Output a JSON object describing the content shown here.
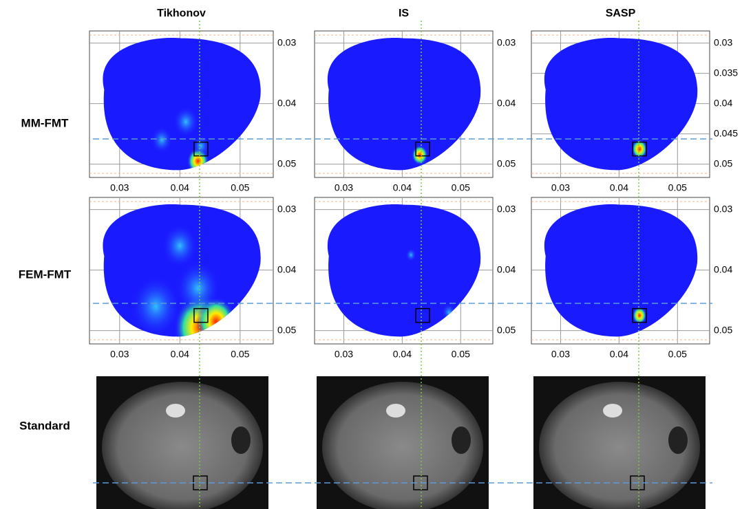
{
  "columns": [
    "Tikhonov",
    "IS",
    "SASP"
  ],
  "rows": [
    "MM-FMT",
    "FEM-FMT",
    "Standard"
  ],
  "panels": [
    {
      "xlim": [
        0.025,
        0.0555
      ],
      "ylim": [
        0.028,
        0.0522
      ],
      "xticks": [
        0.03,
        0.04,
        0.05
      ],
      "yticks": [
        0.03,
        0.04,
        0.05
      ]
    },
    {
      "xlim": [
        0.025,
        0.0555
      ],
      "ylim": [
        0.028,
        0.0522
      ],
      "xticks": [
        0.03,
        0.04,
        0.05
      ],
      "yticks": [
        0.03,
        0.04,
        0.05
      ]
    },
    {
      "xlim": [
        0.025,
        0.0555
      ],
      "ylim": [
        0.028,
        0.0522
      ],
      "xticks": [
        0.03,
        0.04,
        0.05
      ],
      "yticks": [
        0.03,
        0.035,
        0.04,
        0.045,
        0.05
      ]
    },
    {
      "xlim": [
        0.025,
        0.0555
      ],
      "ylim": [
        0.028,
        0.0522
      ],
      "xticks": [
        0.03,
        0.04,
        0.05
      ],
      "yticks": [
        0.03,
        0.04,
        0.05
      ]
    },
    {
      "xlim": [
        0.025,
        0.0555
      ],
      "ylim": [
        0.028,
        0.0522
      ],
      "xticks": [
        0.03,
        0.04,
        0.05
      ],
      "yticks": [
        0.03,
        0.04,
        0.05
      ]
    },
    {
      "xlim": [
        0.025,
        0.0555
      ],
      "ylim": [
        0.028,
        0.0522
      ],
      "xticks": [
        0.03,
        0.04,
        0.05
      ],
      "yticks": [
        0.03,
        0.04,
        0.05
      ]
    }
  ]
}
